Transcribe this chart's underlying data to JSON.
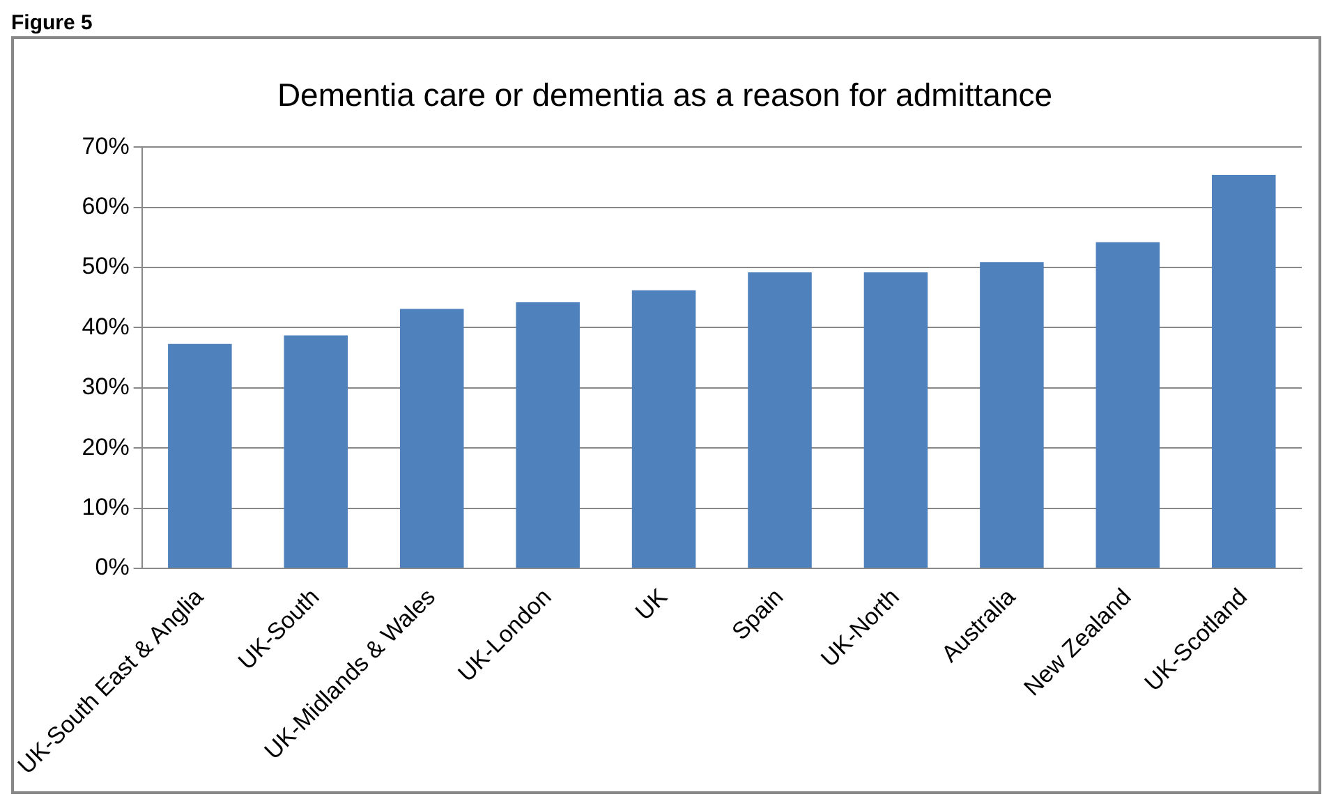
{
  "chart_data": {
    "type": "bar",
    "title": "Dementia care or dementia as a reason for admittance",
    "categories": [
      "UK-South East & Anglia",
      "UK-South",
      "UK-Midlands & Wales",
      "UK-London",
      "UK",
      "Spain",
      "UK-North",
      "Australia",
      "New Zealand",
      "UK-Scotland"
    ],
    "values": [
      37.3,
      38.7,
      43.1,
      44.2,
      46.2,
      49.2,
      49.2,
      50.9,
      54.2,
      65.4
    ],
    "color": "#4f81bd",
    "ylim": [
      0,
      70
    ],
    "yticks": [
      {
        "value": 0,
        "label": "0%"
      },
      {
        "value": 10,
        "label": "10%"
      },
      {
        "value": 20,
        "label": "20%"
      },
      {
        "value": 30,
        "label": "30%"
      },
      {
        "value": 40,
        "label": "40%"
      },
      {
        "value": 50,
        "label": "50%"
      },
      {
        "value": 60,
        "label": "60%"
      },
      {
        "value": 70,
        "label": "70%"
      }
    ],
    "grid": "y",
    "annotations": [
      "Figure 5"
    ]
  }
}
